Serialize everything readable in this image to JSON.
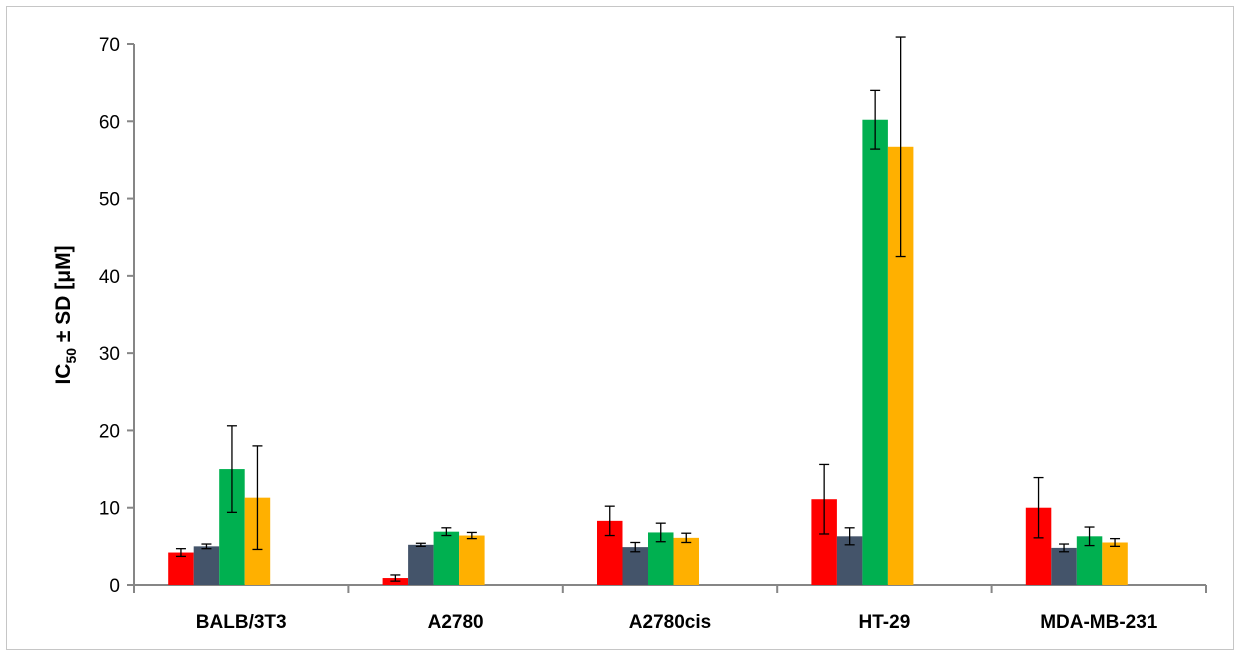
{
  "chart_data": {
    "type": "bar",
    "categories": [
      "BALB/3T3",
      "A2780",
      "A2780cis",
      "HT-29",
      "MDA-MB-231"
    ],
    "series": [
      {
        "color": "#ff0000",
        "values": [
          4.2,
          0.9,
          8.3,
          11.1,
          10.0
        ],
        "errors": [
          0.5,
          0.4,
          1.9,
          4.5,
          3.9
        ]
      },
      {
        "color": "#44546a",
        "values": [
          5.0,
          5.2,
          4.9,
          6.3,
          4.8
        ],
        "errors": [
          0.3,
          0.2,
          0.6,
          1.1,
          0.5
        ]
      },
      {
        "color": "#00b050",
        "values": [
          15.0,
          6.9,
          6.8,
          60.2,
          6.3
        ],
        "errors": [
          5.6,
          0.5,
          1.2,
          3.8,
          1.2
        ]
      },
      {
        "color": "#ffb000",
        "values": [
          11.3,
          6.4,
          6.1,
          56.7,
          5.5
        ],
        "errors": [
          6.7,
          0.4,
          0.6,
          14.2,
          0.5
        ]
      }
    ],
    "ylabel": {
      "main": "IC",
      "sub": "50",
      "rest": " ± SD [μM]"
    },
    "ylim": [
      0,
      70
    ],
    "yticks": [
      0,
      10,
      20,
      30,
      40,
      50,
      60,
      70
    ],
    "grid": false,
    "legend": "none"
  }
}
